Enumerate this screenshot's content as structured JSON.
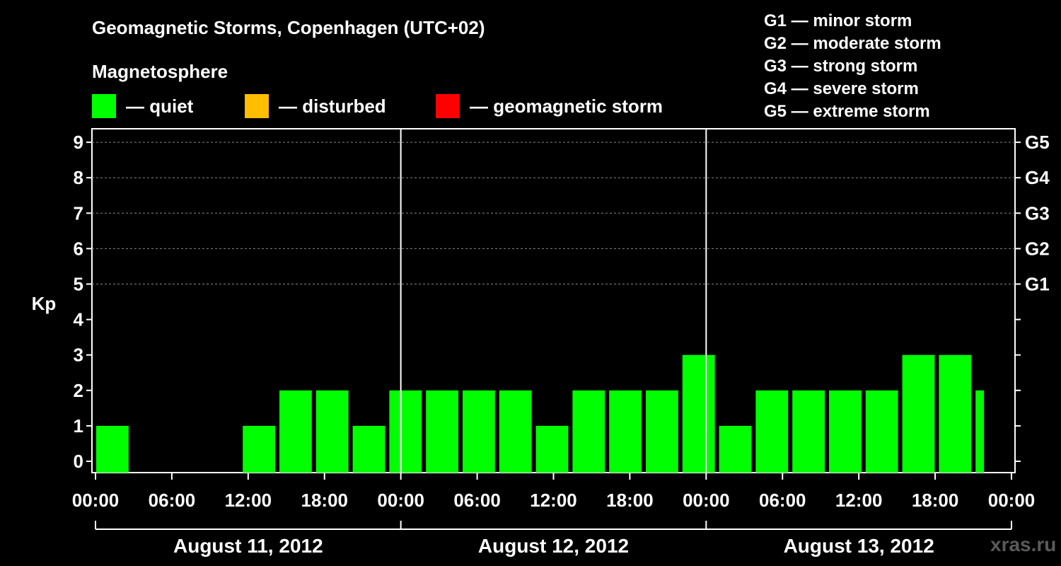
{
  "header": {
    "title": "Geomagnetic Storms, Copenhagen (UTC+02)",
    "subtitle": "Magnetosphere"
  },
  "legend": [
    {
      "label": "— quiet",
      "color": "#00ff00"
    },
    {
      "label": "— disturbed",
      "color": "#ffbf00"
    },
    {
      "label": "— geomagnetic storm",
      "color": "#ff0000"
    }
  ],
  "g_levels": [
    "G1 — minor storm",
    "G2 — moderate storm",
    "G3 — strong storm",
    "G4 — severe storm",
    "G5 — extreme storm"
  ],
  "watermark": "xras.ru",
  "chart_data": {
    "type": "bar",
    "ylabel": "Kp",
    "ylim": [
      0,
      9
    ],
    "yticks": [
      "0",
      "1",
      "2",
      "3",
      "4",
      "5",
      "6",
      "7",
      "8",
      "9"
    ],
    "right_axis_labels": [
      {
        "kp": 5,
        "label": "G1"
      },
      {
        "kp": 6,
        "label": "G2"
      },
      {
        "kp": 7,
        "label": "G3"
      },
      {
        "kp": 8,
        "label": "G4"
      },
      {
        "kp": 9,
        "label": "G5"
      }
    ],
    "xtick_labels": [
      "00:00",
      "06:00",
      "12:00",
      "18:00",
      "00:00",
      "06:00",
      "12:00",
      "18:00",
      "00:00",
      "06:00",
      "12:00",
      "18:00",
      "00:00"
    ],
    "days": [
      "August 11, 2012",
      "August 12, 2012",
      "August 13, 2012"
    ],
    "grid": "dashed horizontal at Kp 5–9",
    "series": [
      {
        "values": [
          1,
          0,
          0,
          0,
          1,
          2,
          2,
          1,
          2,
          2,
          2,
          2,
          1,
          2,
          2,
          2,
          3,
          1,
          2,
          2,
          2,
          2,
          3,
          3,
          2
        ]
      }
    ]
  }
}
